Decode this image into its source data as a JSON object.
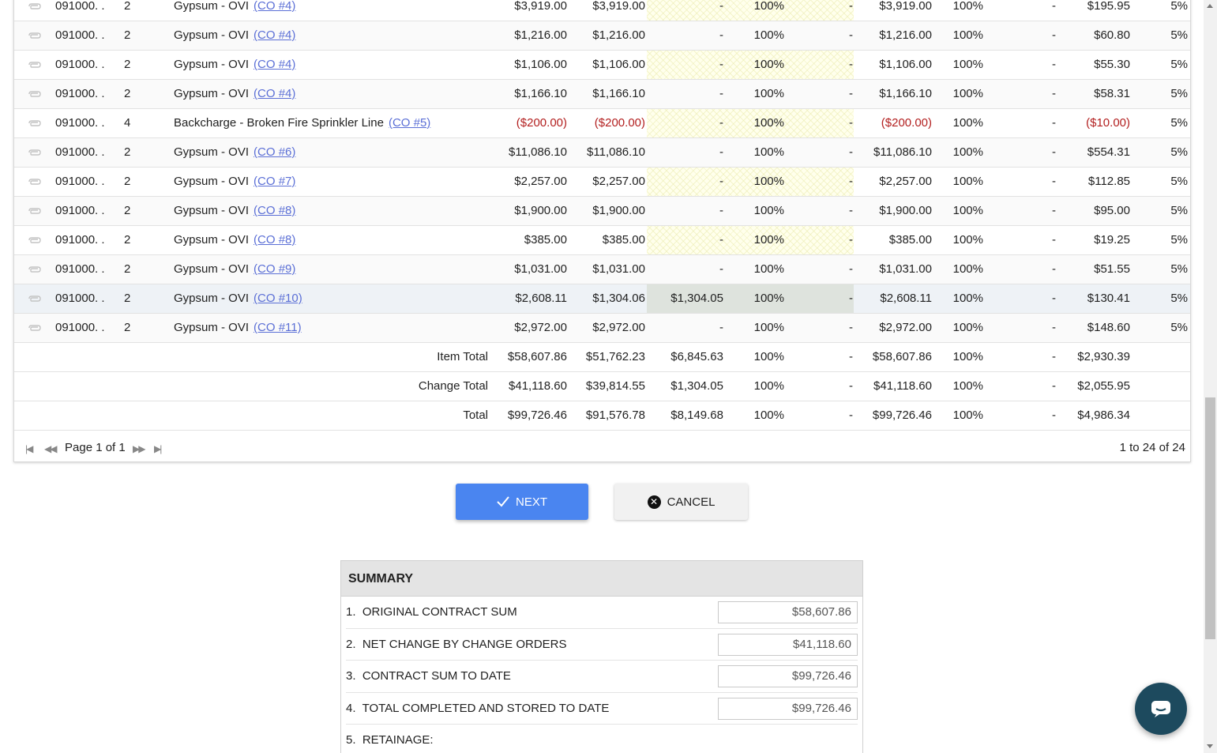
{
  "grid": {
    "columns_note_hidden": false,
    "rows": [
      {
        "code": "091000. .",
        "type": "2",
        "desc": "Gypsum - OVI",
        "co": "(CO #4)",
        "scheduled": "$3,919.00",
        "previous": "$3,919.00",
        "this_period": "-",
        "pct1": "100%",
        "stored": "-",
        "completed": "$3,919.00",
        "pct2": "100%",
        "balance": "-",
        "retainage": "$195.95",
        "ret_pct": "5%",
        "neg": false
      },
      {
        "code": "091000. .",
        "type": "2",
        "desc": "Gypsum - OVI",
        "co": "(CO #4)",
        "scheduled": "$1,216.00",
        "previous": "$1,216.00",
        "this_period": "-",
        "pct1": "100%",
        "stored": "-",
        "completed": "$1,216.00",
        "pct2": "100%",
        "balance": "-",
        "retainage": "$60.80",
        "ret_pct": "5%",
        "neg": false
      },
      {
        "code": "091000. .",
        "type": "2",
        "desc": "Gypsum - OVI",
        "co": "(CO #4)",
        "scheduled": "$1,106.00",
        "previous": "$1,106.00",
        "this_period": "-",
        "pct1": "100%",
        "stored": "-",
        "completed": "$1,106.00",
        "pct2": "100%",
        "balance": "-",
        "retainage": "$55.30",
        "ret_pct": "5%",
        "neg": false
      },
      {
        "code": "091000. .",
        "type": "2",
        "desc": "Gypsum - OVI",
        "co": "(CO #4)",
        "scheduled": "$1,166.10",
        "previous": "$1,166.10",
        "this_period": "-",
        "pct1": "100%",
        "stored": "-",
        "completed": "$1,166.10",
        "pct2": "100%",
        "balance": "-",
        "retainage": "$58.31",
        "ret_pct": "5%",
        "neg": false
      },
      {
        "code": "091000. .",
        "type": "4",
        "desc": "Backcharge - Broken Fire Sprinkler Line",
        "co": "(CO #5)",
        "scheduled": "($200.00)",
        "previous": "($200.00)",
        "this_period": "-",
        "pct1": "100%",
        "stored": "-",
        "completed": "($200.00)",
        "pct2": "100%",
        "balance": "-",
        "retainage": "($10.00)",
        "ret_pct": "5%",
        "neg": true
      },
      {
        "code": "091000. .",
        "type": "2",
        "desc": "Gypsum - OVI",
        "co": "(CO #6)",
        "scheduled": "$11,086.10",
        "previous": "$11,086.10",
        "this_period": "-",
        "pct1": "100%",
        "stored": "-",
        "completed": "$11,086.10",
        "pct2": "100%",
        "balance": "-",
        "retainage": "$554.31",
        "ret_pct": "5%",
        "neg": false
      },
      {
        "code": "091000. .",
        "type": "2",
        "desc": "Gypsum - OVI",
        "co": "(CO #7)",
        "scheduled": "$2,257.00",
        "previous": "$2,257.00",
        "this_period": "-",
        "pct1": "100%",
        "stored": "-",
        "completed": "$2,257.00",
        "pct2": "100%",
        "balance": "-",
        "retainage": "$112.85",
        "ret_pct": "5%",
        "neg": false
      },
      {
        "code": "091000. .",
        "type": "2",
        "desc": "Gypsum - OVI",
        "co": "(CO #8)",
        "scheduled": "$1,900.00",
        "previous": "$1,900.00",
        "this_period": "-",
        "pct1": "100%",
        "stored": "-",
        "completed": "$1,900.00",
        "pct2": "100%",
        "balance": "-",
        "retainage": "$95.00",
        "ret_pct": "5%",
        "neg": false
      },
      {
        "code": "091000. .",
        "type": "2",
        "desc": "Gypsum - OVI",
        "co": "(CO #8)",
        "scheduled": "$385.00",
        "previous": "$385.00",
        "this_period": "-",
        "pct1": "100%",
        "stored": "-",
        "completed": "$385.00",
        "pct2": "100%",
        "balance": "-",
        "retainage": "$19.25",
        "ret_pct": "5%",
        "neg": false
      },
      {
        "code": "091000. .",
        "type": "2",
        "desc": "Gypsum - OVI",
        "co": "(CO #9)",
        "scheduled": "$1,031.00",
        "previous": "$1,031.00",
        "this_period": "-",
        "pct1": "100%",
        "stored": "-",
        "completed": "$1,031.00",
        "pct2": "100%",
        "balance": "-",
        "retainage": "$51.55",
        "ret_pct": "5%",
        "neg": false
      },
      {
        "code": "091000. .",
        "type": "2",
        "desc": "Gypsum - OVI",
        "co": "(CO #10)",
        "scheduled": "$2,608.11",
        "previous": "$1,304.06",
        "this_period": "$1,304.05",
        "pct1": "100%",
        "stored": "-",
        "completed": "$2,608.11",
        "pct2": "100%",
        "balance": "-",
        "retainage": "$130.41",
        "ret_pct": "5%",
        "neg": false,
        "selected": true
      },
      {
        "code": "091000. .",
        "type": "2",
        "desc": "Gypsum - OVI",
        "co": "(CO #11)",
        "scheduled": "$2,972.00",
        "previous": "$2,972.00",
        "this_period": "-",
        "pct1": "100%",
        "stored": "-",
        "completed": "$2,972.00",
        "pct2": "100%",
        "balance": "-",
        "retainage": "$148.60",
        "ret_pct": "5%",
        "neg": false
      }
    ],
    "totals": [
      {
        "label": "Item Total",
        "scheduled": "$58,607.86",
        "previous": "$51,762.23",
        "this_period": "$6,845.63",
        "pct1": "100%",
        "stored": "-",
        "completed": "$58,607.86",
        "pct2": "100%",
        "balance": "-",
        "retainage": "$2,930.39"
      },
      {
        "label": "Change Total",
        "scheduled": "$41,118.60",
        "previous": "$39,814.55",
        "this_period": "$1,304.05",
        "pct1": "100%",
        "stored": "-",
        "completed": "$41,118.60",
        "pct2": "100%",
        "balance": "-",
        "retainage": "$2,055.95"
      },
      {
        "label": "Total",
        "scheduled": "$99,726.46",
        "previous": "$91,576.78",
        "this_period": "$8,149.68",
        "pct1": "100%",
        "stored": "-",
        "completed": "$99,726.46",
        "pct2": "100%",
        "balance": "-",
        "retainage": "$4,986.34"
      }
    ],
    "pager": {
      "page_text": "Page 1 of 1",
      "range_text": "1 to 24 of 24"
    }
  },
  "actions": {
    "next_label": "NEXT",
    "cancel_label": "CANCEL"
  },
  "summary": {
    "title": "SUMMARY",
    "items": [
      {
        "num": "1.",
        "label": "ORIGINAL CONTRACT SUM",
        "value": "$58,607.86"
      },
      {
        "num": "2.",
        "label": "NET CHANGE BY CHANGE ORDERS",
        "value": "$41,118.60"
      },
      {
        "num": "3.",
        "label": "CONTRACT SUM TO DATE",
        "value": "$99,726.46"
      },
      {
        "num": "4.",
        "label": "TOTAL COMPLETED AND STORED TO DATE",
        "value": "$99,726.46"
      },
      {
        "num": "5.",
        "label": "RETAINAGE:",
        "value": ""
      }
    ]
  },
  "colors": {
    "accent": "#4a85f0",
    "negative": "#b32020",
    "link": "#5b6fd6",
    "chat_bg": "#1d4a5e"
  },
  "icons": {
    "attachment": "paperclip-icon",
    "next": "check-icon",
    "cancel": "close-circle-icon",
    "chat": "chat-bubble-icon"
  }
}
